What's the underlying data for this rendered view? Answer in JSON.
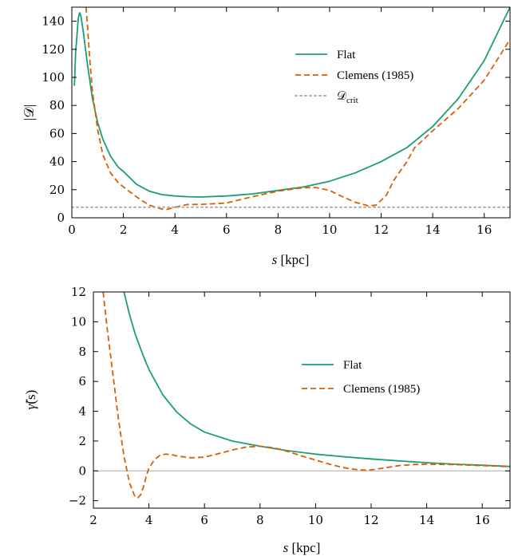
{
  "chart_data": [
    {
      "type": "line",
      "ylabel": "|𝒟|",
      "xlabel_var": "s",
      "xlabel_unit": " [kpc]",
      "xlim": [
        0,
        17
      ],
      "ylim": [
        0,
        150
      ],
      "xticks": [
        0,
        2,
        4,
        6,
        8,
        10,
        12,
        14,
        16
      ],
      "yticks": [
        0,
        20,
        40,
        60,
        80,
        100,
        120,
        140
      ],
      "legend_position": "upper-middle-right",
      "series": [
        {
          "name": "Flat",
          "style": "solid",
          "color": "#1b9e77",
          "x": [
            0.1,
            0.15,
            0.25,
            0.3,
            0.35,
            0.45,
            0.6,
            0.8,
            1.0,
            1.2,
            1.5,
            1.8,
            2.0,
            2.5,
            3.0,
            3.5,
            4.0,
            4.5,
            5.0,
            6.0,
            7.0,
            8.0,
            9.0,
            10.0,
            11.0,
            12.0,
            13.0,
            14.0,
            15.0,
            16.0,
            17.0
          ],
          "y": [
            94,
            118,
            142,
            146,
            144,
            132,
            110,
            85,
            68,
            56,
            44,
            36,
            33,
            24,
            19,
            16.5,
            15.5,
            15,
            14.8,
            15.5,
            17,
            19.5,
            22,
            26,
            32,
            40,
            50,
            65,
            85,
            112,
            150
          ]
        },
        {
          "name": "Clemens (1985)",
          "style": "dashed",
          "color": "#d95f02",
          "x": [
            0.55,
            0.6,
            0.7,
            0.8,
            1.0,
            1.2,
            1.5,
            1.8,
            2.0,
            2.5,
            3.0,
            3.5,
            3.7,
            4.0,
            4.5,
            5.0,
            6.0,
            7.0,
            8.0,
            9.0,
            9.5,
            10.0,
            10.5,
            11.0,
            11.5,
            11.8,
            12.2,
            12.5,
            13.0,
            13.3,
            13.6,
            14.0,
            15.0,
            16.0,
            17.0
          ],
          "y": [
            150,
            138,
            112,
            90,
            63,
            45,
            32,
            25,
            22,
            15,
            9,
            6.2,
            6,
            7.5,
            9.5,
            9.5,
            10.5,
            15,
            19,
            21.5,
            21.5,
            19.5,
            15,
            11,
            8.5,
            9,
            16,
            27,
            40,
            50,
            55,
            62,
            78,
            98,
            127
          ]
        },
        {
          "name": "𝒟",
          "name_sub": "crit",
          "style": "dotted",
          "color": "#aaaaaa",
          "x": [
            0,
            17
          ],
          "y": [
            7.5,
            7.5
          ]
        }
      ]
    },
    {
      "type": "line",
      "ylabel_var": "γ̃",
      "ylabel_arg": "(s)",
      "xlabel_var": "s",
      "xlabel_unit": " [kpc]",
      "xlim": [
        2,
        17
      ],
      "ylim": [
        -2.5,
        12
      ],
      "xticks": [
        2,
        4,
        6,
        8,
        10,
        12,
        14,
        16
      ],
      "yticks": [
        -2,
        0,
        2,
        4,
        6,
        8,
        10,
        12
      ],
      "ytick_labels": [
        "−2",
        "0",
        "2",
        "4",
        "6",
        "8",
        "10",
        "12"
      ],
      "zero_line_color": "#aaaaaa",
      "legend_position": "middle-right",
      "series": [
        {
          "name": "Flat",
          "style": "solid",
          "color": "#1b9e77",
          "x": [
            3.1,
            3.3,
            3.5,
            3.8,
            4.0,
            4.5,
            5.0,
            5.5,
            6.0,
            7.0,
            8.0,
            9.0,
            10.0,
            11.0,
            12.0,
            13.0,
            14.0,
            15.0,
            16.0,
            17.0
          ],
          "y": [
            12,
            10.5,
            9.2,
            7.7,
            6.8,
            5.1,
            3.95,
            3.15,
            2.6,
            2.0,
            1.65,
            1.35,
            1.12,
            0.95,
            0.8,
            0.67,
            0.55,
            0.45,
            0.38,
            0.3
          ]
        },
        {
          "name": "Clemens (1985)",
          "style": "dashed",
          "color": "#d95f02",
          "x": [
            2.35,
            2.5,
            2.7,
            2.9,
            3.1,
            3.3,
            3.5,
            3.6,
            3.7,
            3.8,
            3.9,
            4.0,
            4.2,
            4.4,
            4.6,
            4.8,
            5.0,
            5.5,
            6.0,
            6.5,
            7.0,
            7.5,
            8.0,
            8.5,
            9.0,
            9.5,
            10.0,
            10.5,
            11.0,
            11.5,
            11.8,
            12.0,
            12.5,
            13.0,
            13.5,
            14.0,
            15.0,
            16.0,
            17.0
          ],
          "y": [
            12,
            9.5,
            6.5,
            3.5,
            1.0,
            -0.8,
            -1.75,
            -1.8,
            -1.6,
            -1.1,
            -0.4,
            0.2,
            0.75,
            1.05,
            1.12,
            1.1,
            1.0,
            0.88,
            0.92,
            1.15,
            1.4,
            1.6,
            1.65,
            1.55,
            1.3,
            1.0,
            0.72,
            0.45,
            0.22,
            0.08,
            0.05,
            0.07,
            0.2,
            0.35,
            0.42,
            0.45,
            0.42,
            0.35,
            0.28
          ]
        }
      ]
    }
  ]
}
